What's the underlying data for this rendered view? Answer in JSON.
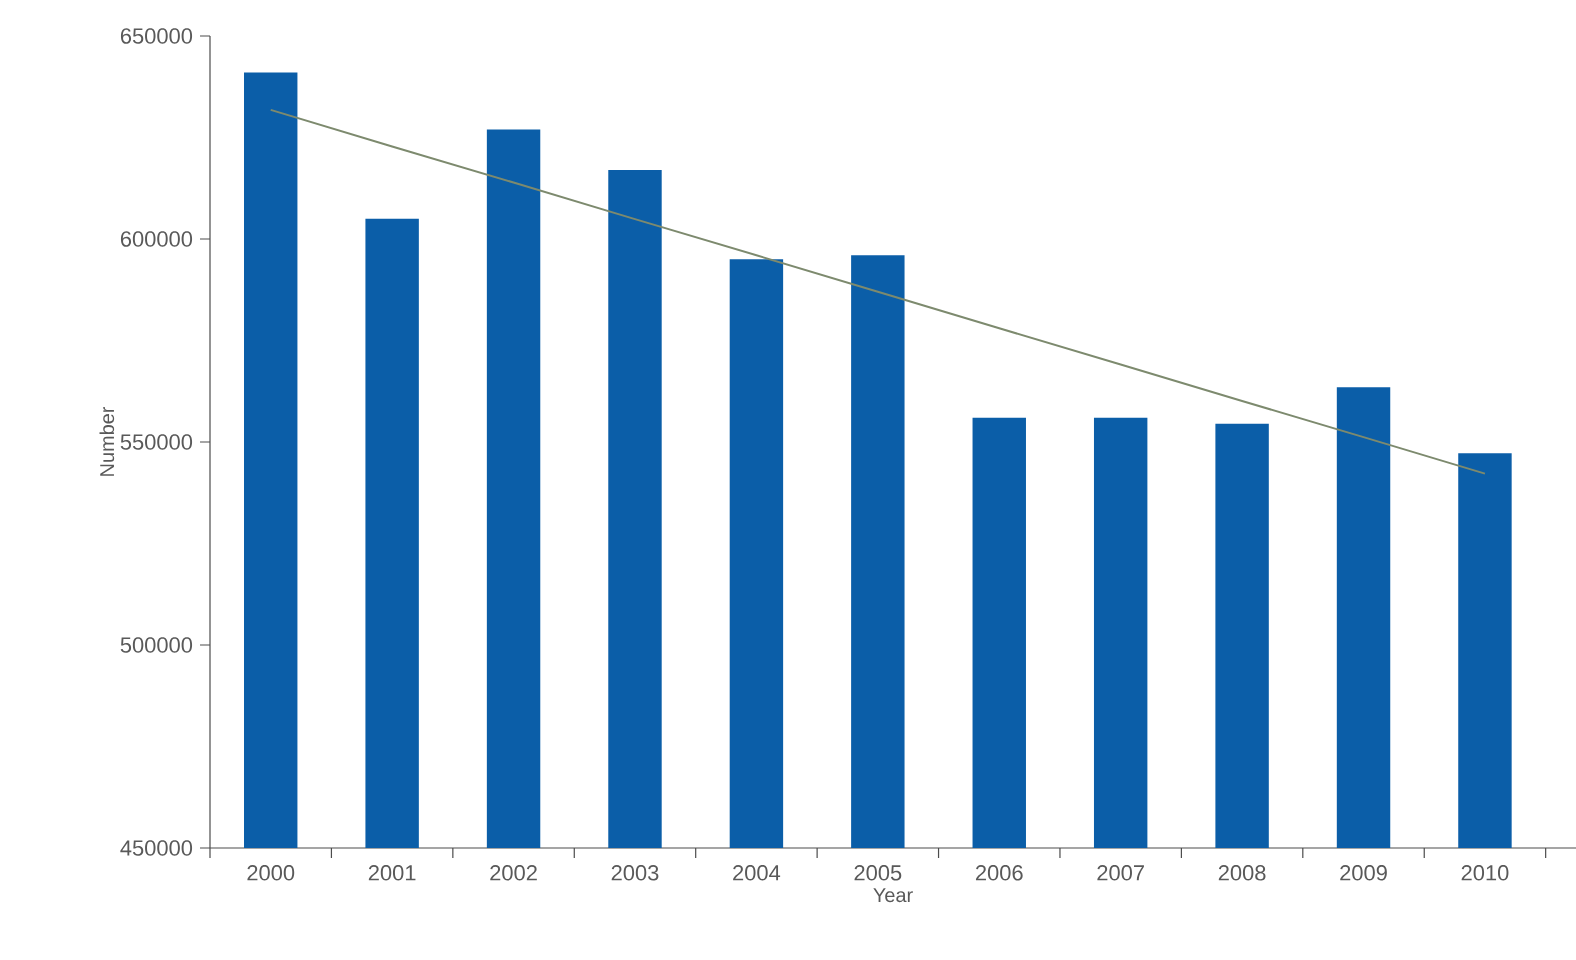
{
  "chart_data": {
    "type": "bar",
    "xlabel": "Year",
    "ylabel": "Number",
    "categories": [
      "2000",
      "2001",
      "2002",
      "2003",
      "2004",
      "2005",
      "2006",
      "2007",
      "2008",
      "2009",
      "2010"
    ],
    "series": [
      {
        "color": "#0b5ea8",
        "values": [
          641000,
          605000,
          627000,
          617000,
          595000,
          596000,
          556000,
          556000,
          554500,
          563500,
          547200
        ]
      },
      {
        "type": "line",
        "color": "#7d8a6e",
        "values": [
          631800,
          622800,
          613900,
          604900,
          596000,
          587000,
          578000,
          569100,
          560100,
          551200,
          542200
        ]
      }
    ],
    "ylim": [
      450000,
      650000
    ],
    "yticks": [
      450000,
      500000,
      550000,
      600000,
      650000
    ]
  }
}
